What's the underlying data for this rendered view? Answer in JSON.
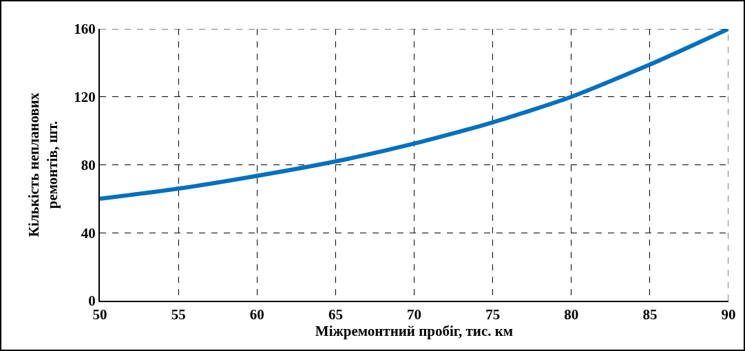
{
  "chart_data": {
    "type": "line",
    "xlabel": "Міжремонтний пробіг, тис. км",
    "ylabel": "Кількість непланових\nремонтів, шт.",
    "x": [
      50,
      55,
      60,
      65,
      70,
      75,
      80,
      85,
      90
    ],
    "series": [
      {
        "color": "#0070c0",
        "values": [
          60,
          66,
          73.5,
          82,
          92.5,
          105,
          120,
          139,
          160
        ]
      }
    ],
    "xlim": [
      50,
      90
    ],
    "xticks": [
      50,
      55,
      60,
      65,
      70,
      75,
      80,
      85,
      90
    ],
    "ylim": [
      0,
      160
    ],
    "yticks": [
      0,
      40,
      80,
      120,
      160
    ],
    "grid": true,
    "marker": "none",
    "line_style": "solid"
  }
}
